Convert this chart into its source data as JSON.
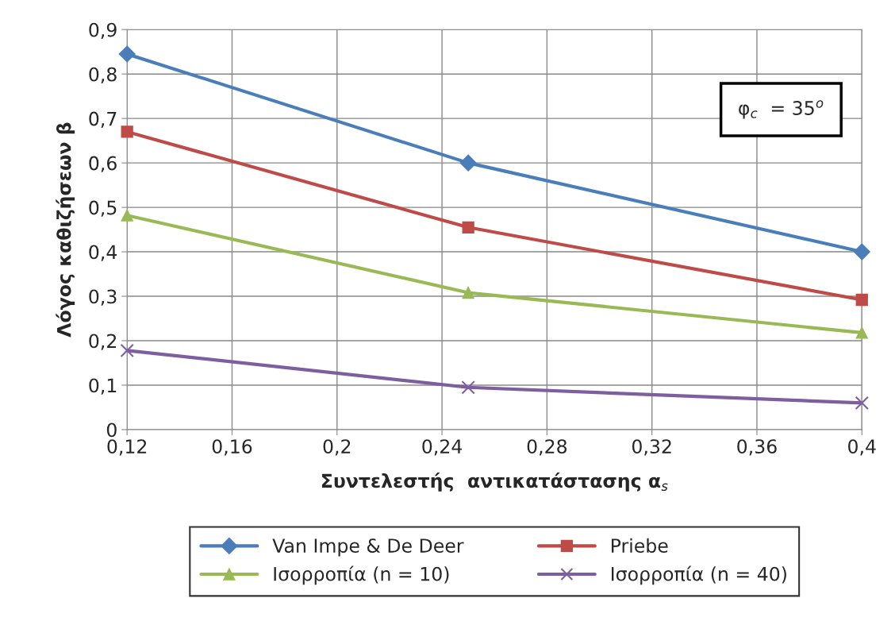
{
  "chart_data": {
    "type": "line",
    "xlabel": "Συντελεστής  αντικατάστασης α$_{s}$",
    "ylabel": "Λόγος καθιζήσεων β",
    "x": [
      0.12,
      0.25,
      0.4
    ],
    "series": [
      {
        "name": "Van Impe & De Deer",
        "color": "#4a7ebb",
        "marker": "diamond",
        "values": [
          0.845,
          0.6,
          0.4
        ]
      },
      {
        "name": "Priebe",
        "color": "#be4b48",
        "marker": "square",
        "values": [
          0.67,
          0.455,
          0.292
        ]
      },
      {
        "name": "Ισορροπία (n = 10)",
        "color": "#98b954",
        "marker": "triangle",
        "values": [
          0.482,
          0.308,
          0.218
        ]
      },
      {
        "name": "Ισορροπία (n = 40)",
        "color": "#7d5fa0",
        "marker": "cross",
        "values": [
          0.178,
          0.095,
          0.06
        ]
      }
    ],
    "xlim": [
      0.12,
      0.4
    ],
    "xticks": [
      {
        "value": 0.12,
        "label": "0,12"
      },
      {
        "value": 0.16,
        "label": "0,16"
      },
      {
        "value": 0.2,
        "label": "0,2"
      },
      {
        "value": 0.24,
        "label": "0,24"
      },
      {
        "value": 0.28,
        "label": "0,28"
      },
      {
        "value": 0.32,
        "label": "0,32"
      },
      {
        "value": 0.36,
        "label": "0,36"
      },
      {
        "value": 0.4,
        "label": "0,4"
      }
    ],
    "ylim": [
      0,
      0.9
    ],
    "yticks": [
      0,
      {
        "value": 0.1,
        "label": "0,1"
      },
      {
        "value": 0.2,
        "label": "0,2"
      },
      {
        "value": 0.3,
        "label": "0,3"
      },
      {
        "value": 0.4,
        "label": "0,4"
      },
      {
        "value": 0.5,
        "label": "0,5"
      },
      {
        "value": 0.6,
        "label": "0,6"
      },
      {
        "value": 0.7,
        "label": "0,7"
      },
      {
        "value": 0.8,
        "label": "0,8"
      },
      {
        "value": 0.9,
        "label": "0,9"
      }
    ],
    "grid": true,
    "legend": "bottom",
    "annotations": [
      "φ$_{c}$  = 35$^{o}$"
    ]
  }
}
